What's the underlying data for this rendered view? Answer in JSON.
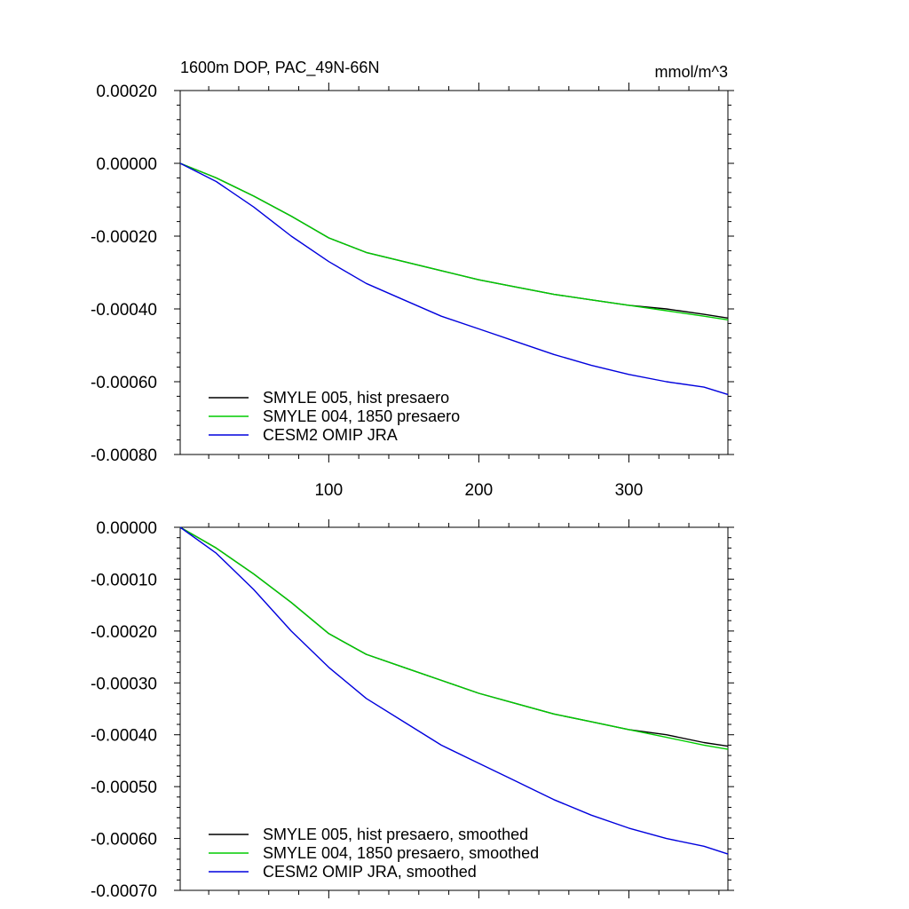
{
  "figure": {
    "title_left": "1600m DOP, PAC_49N-66N",
    "title_right": "mmol/m^3"
  },
  "chart_data": [
    {
      "type": "line",
      "name": "raw",
      "title": "1600m DOP, PAC_49N-66N",
      "units": "mmol/m^3",
      "xlim": [
        1,
        366
      ],
      "ylim": [
        -0.0008,
        0.0002
      ],
      "xticks": [
        100,
        200,
        300
      ],
      "xtick_labels": [
        "100",
        "200",
        "300"
      ],
      "yticks": [
        0.0002,
        0.0,
        -0.0002,
        -0.0004,
        -0.0006,
        -0.0008
      ],
      "ytick_labels": [
        "0.00020",
        "0.00000",
        "-0.00020",
        "-0.00040",
        "-0.00060",
        "-0.00080"
      ],
      "grid": false,
      "legend_position": "bottom-left",
      "series": [
        {
          "name": "SMYLE 005, hist presaero",
          "color": "#000000",
          "x": [
            1,
            25,
            50,
            75,
            100,
            125,
            150,
            175,
            200,
            225,
            250,
            275,
            300,
            325,
            350,
            366
          ],
          "y": [
            0.0,
            -4e-05,
            -9e-05,
            -0.000145,
            -0.000205,
            -0.000245,
            -0.00027,
            -0.000295,
            -0.00032,
            -0.00034,
            -0.00036,
            -0.000375,
            -0.00039,
            -0.0004,
            -0.000415,
            -0.000425
          ]
        },
        {
          "name": "SMYLE 004, 1850 presaero",
          "color": "#00cc00",
          "x": [
            1,
            25,
            50,
            75,
            100,
            125,
            150,
            175,
            200,
            225,
            250,
            275,
            300,
            325,
            350,
            366
          ],
          "y": [
            0.0,
            -4e-05,
            -9e-05,
            -0.000145,
            -0.000205,
            -0.000245,
            -0.00027,
            -0.000295,
            -0.00032,
            -0.00034,
            -0.00036,
            -0.000375,
            -0.00039,
            -0.000405,
            -0.00042,
            -0.00043
          ]
        },
        {
          "name": "CESM2 OMIP JRA",
          "color": "#0000dd",
          "x": [
            1,
            25,
            50,
            75,
            100,
            125,
            150,
            175,
            200,
            225,
            250,
            275,
            300,
            325,
            350,
            366
          ],
          "y": [
            0.0,
            -5e-05,
            -0.00012,
            -0.0002,
            -0.00027,
            -0.00033,
            -0.000375,
            -0.00042,
            -0.000455,
            -0.00049,
            -0.000525,
            -0.000555,
            -0.00058,
            -0.0006,
            -0.000615,
            -0.000635
          ]
        }
      ]
    },
    {
      "type": "line",
      "name": "smoothed",
      "xlim": [
        1,
        366
      ],
      "ylim": [
        -0.0007,
        0.0
      ],
      "xticks": [
        100,
        200,
        300
      ],
      "yticks": [
        0.0,
        -0.0001,
        -0.0002,
        -0.0003,
        -0.0004,
        -0.0005,
        -0.0006,
        -0.0007
      ],
      "ytick_labels": [
        "0.00000",
        "-0.00010",
        "-0.00020",
        "-0.00030",
        "-0.00040",
        "-0.00050",
        "-0.00060",
        "-0.00070"
      ],
      "grid": false,
      "legend_position": "bottom-left",
      "series": [
        {
          "name": "SMYLE 005, hist presaero, smoothed",
          "color": "#000000",
          "x": [
            1,
            25,
            50,
            75,
            100,
            125,
            150,
            175,
            200,
            225,
            250,
            275,
            300,
            325,
            350,
            366
          ],
          "y": [
            0.0,
            -4e-05,
            -9e-05,
            -0.000145,
            -0.000205,
            -0.000245,
            -0.00027,
            -0.000295,
            -0.00032,
            -0.00034,
            -0.00036,
            -0.000375,
            -0.00039,
            -0.0004,
            -0.000415,
            -0.000422
          ]
        },
        {
          "name": "SMYLE 004, 1850 presaero, smoothed",
          "color": "#00cc00",
          "x": [
            1,
            25,
            50,
            75,
            100,
            125,
            150,
            175,
            200,
            225,
            250,
            275,
            300,
            325,
            350,
            366
          ],
          "y": [
            0.0,
            -4e-05,
            -9e-05,
            -0.000145,
            -0.000205,
            -0.000245,
            -0.00027,
            -0.000295,
            -0.00032,
            -0.00034,
            -0.00036,
            -0.000375,
            -0.00039,
            -0.000405,
            -0.00042,
            -0.000428
          ]
        },
        {
          "name": "CESM2 OMIP JRA, smoothed",
          "color": "#0000dd",
          "x": [
            1,
            25,
            50,
            75,
            100,
            125,
            150,
            175,
            200,
            225,
            250,
            275,
            300,
            325,
            350,
            366
          ],
          "y": [
            0.0,
            -5e-05,
            -0.00012,
            -0.0002,
            -0.00027,
            -0.00033,
            -0.000375,
            -0.00042,
            -0.000455,
            -0.00049,
            -0.000525,
            -0.000555,
            -0.00058,
            -0.0006,
            -0.000615,
            -0.00063
          ]
        }
      ]
    }
  ]
}
